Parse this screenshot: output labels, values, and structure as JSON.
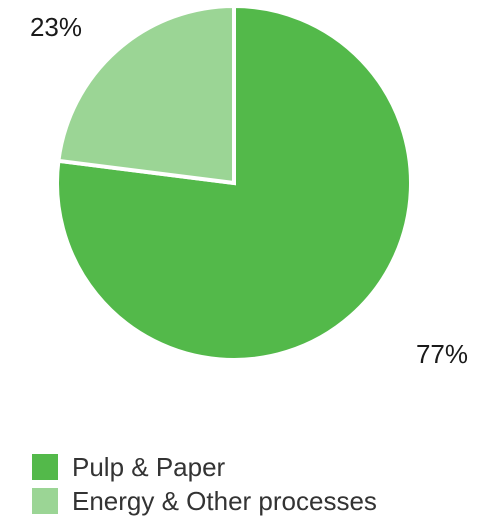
{
  "chart_data": {
    "type": "pie",
    "slices": [
      {
        "label": "Pulp & Paper",
        "value": 77,
        "display": "77%",
        "color": "#53b94a"
      },
      {
        "label": "Energy & Other processes",
        "value": 23,
        "display": "23%",
        "color": "#9bd595"
      }
    ],
    "start_angle": "12 o'clock",
    "direction": "clockwise",
    "legend_position": "bottom-left",
    "title": ""
  }
}
